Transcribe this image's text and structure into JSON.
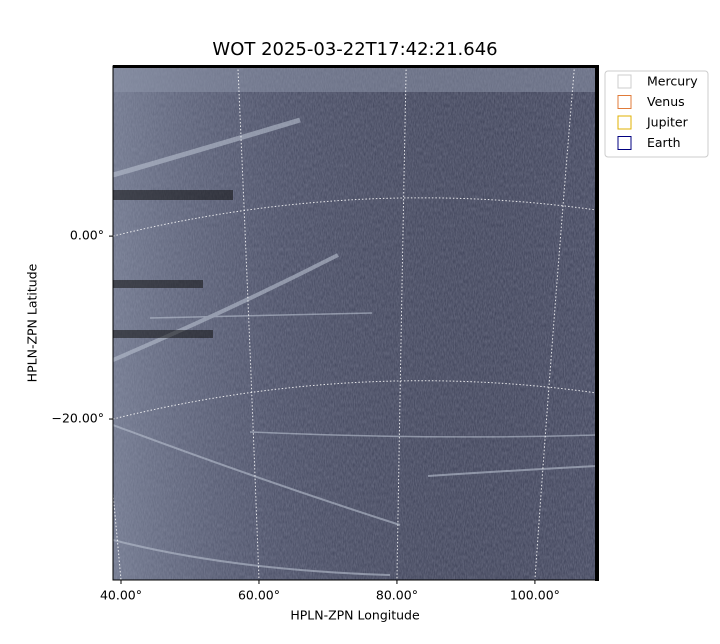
{
  "chart_data": {
    "type": "image",
    "title": "WOT 2025-03-22T17:42:21.646",
    "xlabel": "HPLN-ZPN Longitude",
    "ylabel": "HPLN-ZPN Latitude",
    "xlim": [
      38.84,
      109.0
    ],
    "ylim": [
      -37.6,
      18.6
    ],
    "xticks": [
      {
        "value": 40,
        "label": "40.00°"
      },
      {
        "value": 60,
        "label": "60.00°"
      },
      {
        "value": 80,
        "label": "80.00°"
      },
      {
        "value": 100,
        "label": "100.00°"
      }
    ],
    "yticks": [
      {
        "value": 0,
        "label": "0.00°"
      },
      {
        "value": -20,
        "label": "−20.00°"
      }
    ],
    "grid": true,
    "legend_position": "outside-upper-right",
    "series": [
      {
        "name": "Mercury",
        "color": "#cccccc"
      },
      {
        "name": "Venus",
        "color": "#e07b39"
      },
      {
        "name": "Jupiter",
        "color": "#e0b000"
      },
      {
        "name": "Earth",
        "color": "#000080"
      }
    ]
  }
}
